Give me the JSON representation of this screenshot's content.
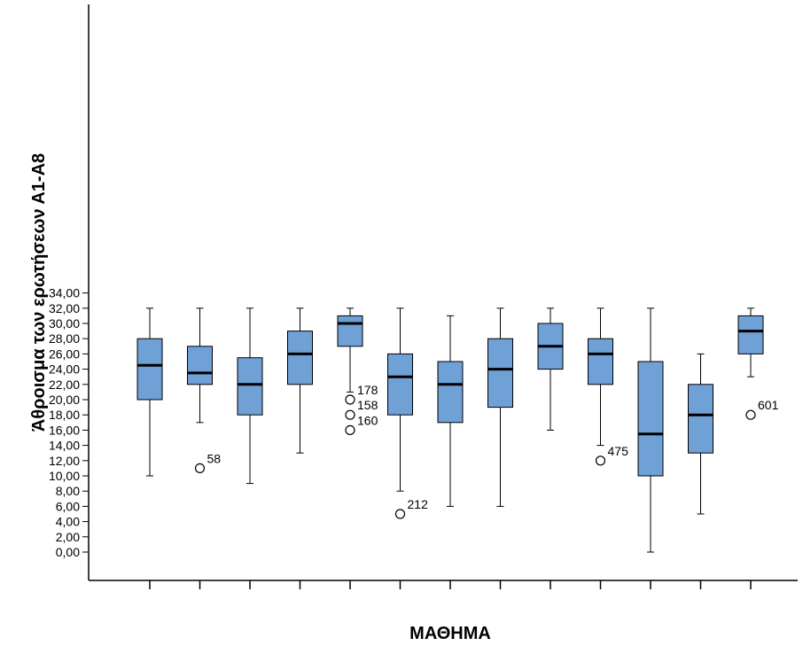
{
  "chart_data": {
    "type": "boxplot",
    "xlabel": "ΜΑΘΗΜΑ",
    "ylabel": "Άθροισμα των ερωτήσεων Α1-Α8",
    "ylim": [
      -2,
      36
    ],
    "yticks": [
      0,
      2,
      4,
      6,
      8,
      10,
      12,
      14,
      16,
      18,
      20,
      22,
      24,
      26,
      28,
      30,
      32,
      34
    ],
    "ytick_labels": [
      "0,00",
      "2,00",
      "4,00",
      "6,00",
      "8,00",
      "10,00",
      "12,00",
      "14,00",
      "16,00",
      "18,00",
      "20,00",
      "22,00",
      "24,00",
      "26,00",
      "28,00",
      "30,00",
      "32,00",
      "34,00"
    ],
    "box_color": "#6fa0d6",
    "grid": false,
    "boxes": [
      {
        "min": 10,
        "q1": 20,
        "median": 24.5,
        "q3": 28,
        "max": 32,
        "outliers": []
      },
      {
        "min": 17,
        "q1": 22,
        "median": 23.5,
        "q3": 27,
        "max": 32,
        "outliers": [
          {
            "value": 11,
            "label": "58"
          }
        ]
      },
      {
        "min": 9,
        "q1": 18,
        "median": 22,
        "q3": 25.5,
        "max": 32,
        "outliers": []
      },
      {
        "min": 13,
        "q1": 22,
        "median": 26,
        "q3": 29,
        "max": 32,
        "outliers": []
      },
      {
        "min": 21,
        "q1": 27,
        "median": 30,
        "q3": 31,
        "max": 32,
        "outliers": [
          {
            "value": 20,
            "label": "178"
          },
          {
            "value": 18,
            "label": "158"
          },
          {
            "value": 16,
            "label": "160"
          }
        ]
      },
      {
        "min": 8,
        "q1": 18,
        "median": 23,
        "q3": 26,
        "max": 32,
        "outliers": [
          {
            "value": 5,
            "label": "212"
          }
        ]
      },
      {
        "min": 6,
        "q1": 17,
        "median": 22,
        "q3": 25,
        "max": 31,
        "outliers": []
      },
      {
        "min": 6,
        "q1": 19,
        "median": 24,
        "q3": 28,
        "max": 32,
        "outliers": []
      },
      {
        "min": 16,
        "q1": 24,
        "median": 27,
        "q3": 30,
        "max": 32,
        "outliers": []
      },
      {
        "min": 14,
        "q1": 22,
        "median": 26,
        "q3": 28,
        "max": 32,
        "outliers": [
          {
            "value": 12,
            "label": "475"
          }
        ]
      },
      {
        "min": 0,
        "q1": 10,
        "median": 15.5,
        "q3": 25,
        "max": 32,
        "outliers": []
      },
      {
        "min": 5,
        "q1": 13,
        "median": 18,
        "q3": 22,
        "max": 26,
        "outliers": []
      },
      {
        "min": 23,
        "q1": 26,
        "median": 29,
        "q3": 31,
        "max": 32,
        "outliers": [
          {
            "value": 18,
            "label": "601"
          }
        ]
      }
    ]
  }
}
